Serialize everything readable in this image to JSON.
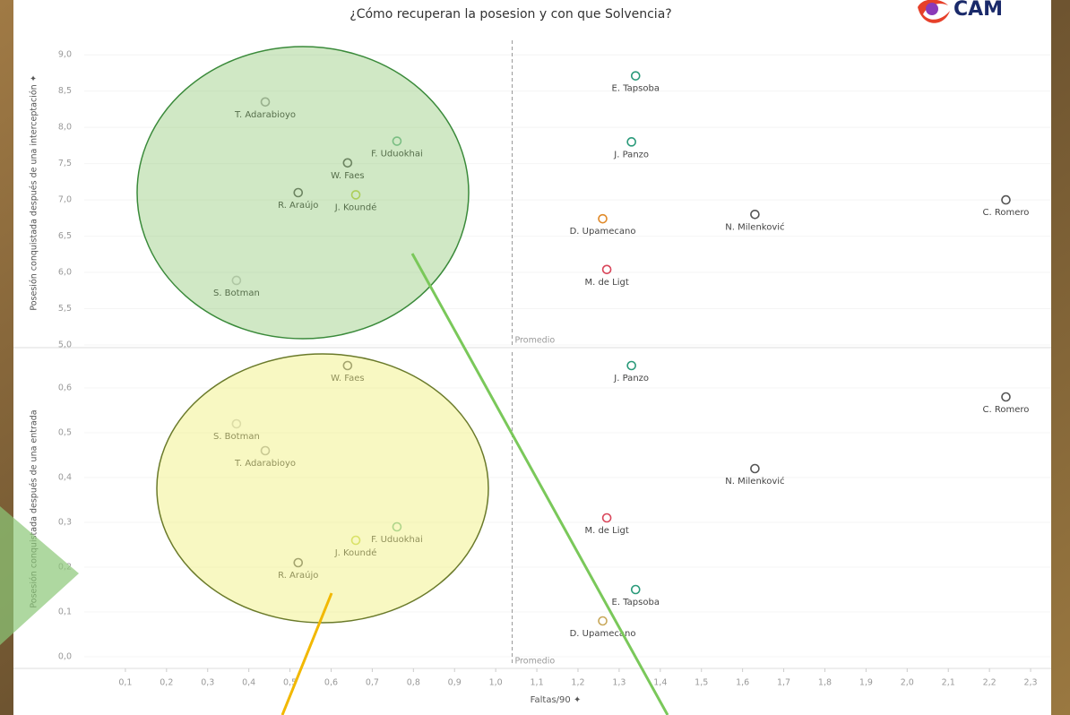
{
  "logo": "CAM",
  "chart_data": [
    {
      "type": "scatter",
      "title": "¿Cómo recuperan la posesion y con que Solvencia?",
      "ylabel": "Posesión conquistada después de una interceptación ✦",
      "annotation": "Promedio",
      "xref": 1.04,
      "xlim": [
        0,
        2.35
      ],
      "ylim": [
        5.0,
        9.2
      ],
      "yticks": [
        {
          "value": 5.0,
          "label": "5,0"
        },
        {
          "value": 5.5,
          "label": "5,5"
        },
        {
          "value": 6.0,
          "label": "6,0"
        },
        {
          "value": 6.5,
          "label": "6,5"
        },
        {
          "value": 7.0,
          "label": "7,0"
        },
        {
          "value": 7.5,
          "label": "7,5"
        },
        {
          "value": 8.0,
          "label": "8,0"
        },
        {
          "value": 8.5,
          "label": "8,5"
        },
        {
          "value": 9.0,
          "label": "9,0"
        }
      ],
      "labels": [
        "T. Adarabioyo",
        "F. Uduokhai",
        "W. Faes",
        "R. Araújo",
        "J. Koundé",
        "S. Botman",
        "E. Tapsoba",
        "J. Panzo",
        "D. Upamecano",
        "N. Milenković",
        "C. Romero",
        "M. de Ligt"
      ],
      "x": [
        0.44,
        0.76,
        0.64,
        0.52,
        0.66,
        0.37,
        1.34,
        1.33,
        1.26,
        1.63,
        2.24,
        1.27
      ],
      "y": [
        8.35,
        7.81,
        7.51,
        7.1,
        7.07,
        5.89,
        8.71,
        7.8,
        6.74,
        6.8,
        7.0,
        6.04
      ],
      "colors": [
        "#aaaaaa",
        "#7bbf9a",
        "#666666",
        "#666666",
        "#c8d85a",
        "#cccccc",
        "#2a9a7a",
        "#2a9a7a",
        "#e08a2a",
        "#555555",
        "#555555",
        "#d9465a"
      ]
    },
    {
      "type": "scatter",
      "ylabel": "Posesión conquistada después de una entrada",
      "xlabel": "Faltas/90 ✦",
      "annotation": "Promedio",
      "xref": 1.04,
      "xlim": [
        0,
        2.35
      ],
      "ylim": [
        -0.02,
        0.68
      ],
      "yticks": [
        {
          "value": 0.0,
          "label": "0,0"
        },
        {
          "value": 0.1,
          "label": "0,1"
        },
        {
          "value": 0.2,
          "label": "0,2"
        },
        {
          "value": 0.3,
          "label": "0,3"
        },
        {
          "value": 0.4,
          "label": "0,4"
        },
        {
          "value": 0.5,
          "label": "0,5"
        },
        {
          "value": 0.6,
          "label": "0,6"
        }
      ],
      "xticks": [
        {
          "value": 0.1,
          "label": "0,1"
        },
        {
          "value": 0.2,
          "label": "0,2"
        },
        {
          "value": 0.3,
          "label": "0,3"
        },
        {
          "value": 0.4,
          "label": "0,4"
        },
        {
          "value": 0.5,
          "label": "0,5"
        },
        {
          "value": 0.6,
          "label": "0,6"
        },
        {
          "value": 0.7,
          "label": "0,7"
        },
        {
          "value": 0.8,
          "label": "0,8"
        },
        {
          "value": 0.9,
          "label": "0,9"
        },
        {
          "value": 1.0,
          "label": "1,0"
        },
        {
          "value": 1.1,
          "label": "1,1"
        },
        {
          "value": 1.2,
          "label": "1,2"
        },
        {
          "value": 1.3,
          "label": "1,3"
        },
        {
          "value": 1.4,
          "label": "1,4"
        },
        {
          "value": 1.5,
          "label": "1,5"
        },
        {
          "value": 1.6,
          "label": "1,6"
        },
        {
          "value": 1.7,
          "label": "1,7"
        },
        {
          "value": 1.8,
          "label": "1,8"
        },
        {
          "value": 1.9,
          "label": "1,9"
        },
        {
          "value": 2.0,
          "label": "2,0"
        },
        {
          "value": 2.1,
          "label": "2,1"
        },
        {
          "value": 2.2,
          "label": "2,2"
        },
        {
          "value": 2.3,
          "label": "2,3"
        }
      ],
      "labels": [
        "W. Faes",
        "J. Panzo",
        "C. Romero",
        "S. Botman",
        "T. Adarabioyo",
        "N. Milenković",
        "M. de Ligt",
        "F. Uduokhai",
        "J. Koundé",
        "R. Araújo",
        "E. Tapsoba",
        "D. Upamecano"
      ],
      "x": [
        0.64,
        1.33,
        2.24,
        0.37,
        0.44,
        1.63,
        1.27,
        0.76,
        0.66,
        0.52,
        1.34,
        1.26
      ],
      "y": [
        0.65,
        0.65,
        0.58,
        0.52,
        0.46,
        0.42,
        0.31,
        0.29,
        0.26,
        0.21,
        0.15,
        0.08
      ],
      "colors": [
        "#666666",
        "#2a9a7a",
        "#555555",
        "#cccccc",
        "#aaaaaa",
        "#555555",
        "#d9465a",
        "#7bbf9a",
        "#c8d85a",
        "#666666",
        "#2a9a7a",
        "#c8a85a"
      ]
    }
  ]
}
